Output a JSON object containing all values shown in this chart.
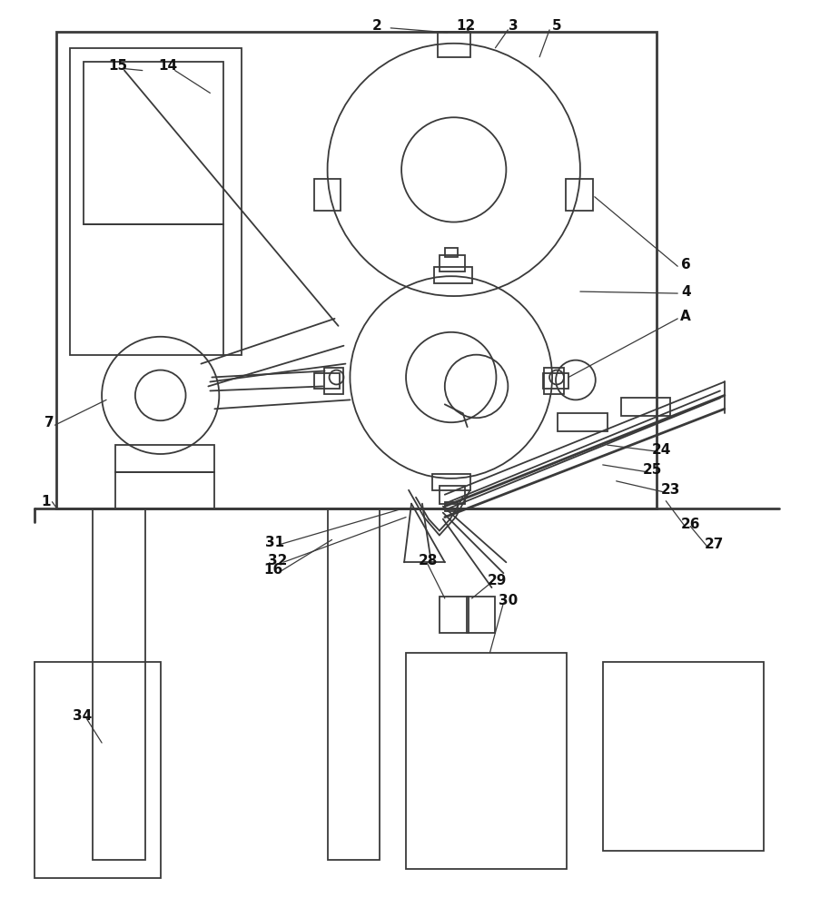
{
  "bg_color": "#ffffff",
  "lc": "#3a3a3a",
  "lw": 1.3,
  "tlw": 2.0,
  "fig_width": 9.14,
  "fig_height": 10.0
}
